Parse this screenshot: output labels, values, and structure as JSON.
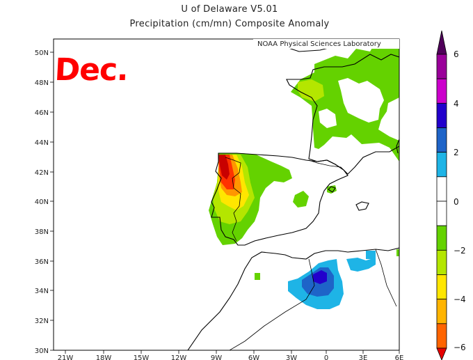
{
  "title": "U of Delaware V5.01",
  "subtitle": "Precipitation (cm/mn) Composite Anomaly",
  "credit": "NOAA Physical Sciences Laboratory",
  "annotation": "Dec.",
  "annotation_color": "#ff0000",
  "lat_labels": [
    "50N",
    "48N",
    "46N",
    "44N",
    "42N",
    "40N",
    "38N",
    "36N",
    "34N",
    "32N",
    "30N"
  ],
  "lon_labels": [
    "21W",
    "18W",
    "15W",
    "12W",
    "9W",
    "6W",
    "3W",
    "0",
    "3E",
    "6E"
  ],
  "colorbar": {
    "labels": [
      "6",
      "4",
      "2",
      "0",
      "−2",
      "−4",
      "−6"
    ],
    "colors": [
      "#50005a",
      "#9a009a",
      "#cc00cc",
      "#2200cc",
      "#1e64c8",
      "#1eb4e6",
      "#ffffff",
      "#ffffff",
      "#64d200",
      "#b4e600",
      "#ffe600",
      "#ffb400",
      "#ff6400",
      "#e60000"
    ]
  },
  "map_colors": {
    "dark_red": "#c80000",
    "red": "#ff3200",
    "orange": "#ff9600",
    "yellow": "#ffe600",
    "yellow_green": "#b4e600",
    "green": "#64d200",
    "cyan": "#1eb4e6",
    "blue": "#1e64c8",
    "dark_blue": "#2200cc"
  }
}
